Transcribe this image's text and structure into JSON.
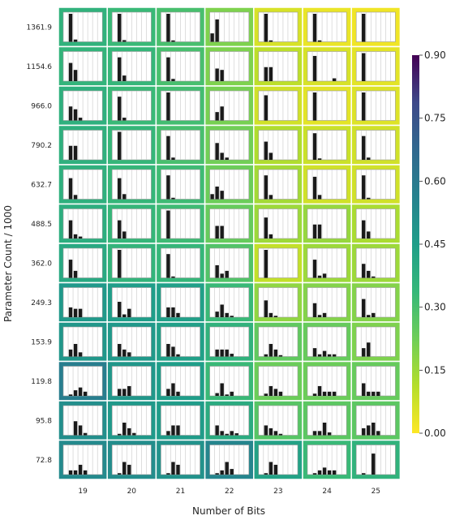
{
  "chart_data": {
    "type": "heatmap",
    "title": "",
    "xlabel": "Number of Bits",
    "ylabel": "Parameter Count / 1000",
    "x_categories": [
      "19",
      "20",
      "21",
      "22",
      "23",
      "24",
      "25"
    ],
    "y_categories": [
      "1361.9",
      "1154.6",
      "966.0",
      "790.2",
      "632.7",
      "488.5",
      "362.0",
      "249.3",
      "153.9",
      "119.8",
      "95.8",
      "72.8"
    ],
    "colorbar": {
      "min": 0.0,
      "max": 0.9,
      "ticks": [
        "0.00",
        "0.15",
        "0.30",
        "0.45",
        "0.60",
        "0.75",
        "0.90"
      ],
      "colormap": "viridis_r"
    },
    "values": [
      [
        0.36,
        0.33,
        0.3,
        0.2,
        0.06,
        0.03,
        0.02
      ],
      [
        0.35,
        0.34,
        0.3,
        0.2,
        0.1,
        0.06,
        0.04
      ],
      [
        0.37,
        0.33,
        0.31,
        0.21,
        0.07,
        0.04,
        0.05
      ],
      [
        0.37,
        0.34,
        0.3,
        0.22,
        0.12,
        0.08,
        0.07
      ],
      [
        0.37,
        0.34,
        0.32,
        0.23,
        0.14,
        0.07,
        0.07
      ],
      [
        0.38,
        0.34,
        0.32,
        0.24,
        0.15,
        0.16,
        0.13
      ],
      [
        0.4,
        0.35,
        0.34,
        0.28,
        0.09,
        0.15,
        0.15
      ],
      [
        0.47,
        0.45,
        0.44,
        0.33,
        0.17,
        0.19,
        0.19
      ],
      [
        0.48,
        0.47,
        0.44,
        0.36,
        0.25,
        0.24,
        0.2
      ],
      [
        0.58,
        0.48,
        0.45,
        0.33,
        0.23,
        0.23,
        0.24
      ],
      [
        0.51,
        0.47,
        0.46,
        0.39,
        0.27,
        0.26,
        0.26
      ],
      [
        0.53,
        0.52,
        0.5,
        0.55,
        0.43,
        0.33,
        0.36
      ]
    ],
    "cell_histograms": [
      [
        [
          0,
          1,
          0.08,
          0,
          0,
          0,
          0,
          0
        ],
        [
          0,
          1,
          0.06,
          0,
          0,
          0,
          0,
          0
        ],
        [
          0,
          1,
          0.05,
          0,
          0,
          0,
          0,
          0
        ],
        [
          0.3,
          0.8,
          0,
          0,
          0,
          0,
          0,
          0
        ],
        [
          0,
          1,
          0.05,
          0,
          0,
          0,
          0,
          0
        ],
        [
          0,
          1,
          0.05,
          0,
          0,
          0,
          0,
          0
        ],
        [
          0,
          1,
          0,
          0,
          0,
          0,
          0,
          0
        ]
      ],
      [
        [
          0,
          0.65,
          0.4,
          0,
          0,
          0,
          0,
          0
        ],
        [
          0,
          0.85,
          0.2,
          0,
          0,
          0,
          0,
          0
        ],
        [
          0,
          0.85,
          0.08,
          0,
          0,
          0,
          0,
          0
        ],
        [
          0,
          0.45,
          0.4,
          0,
          0,
          0,
          0,
          0
        ],
        [
          0,
          0.5,
          0.5,
          0,
          0,
          0,
          0,
          0
        ],
        [
          0,
          0.9,
          0,
          0,
          0,
          0.1,
          0,
          0
        ],
        [
          0,
          1,
          0,
          0,
          0,
          0,
          0,
          0
        ]
      ],
      [
        [
          0,
          0.5,
          0.4,
          0.1,
          0,
          0,
          0,
          0
        ],
        [
          0,
          0.85,
          0.1,
          0,
          0,
          0,
          0,
          0
        ],
        [
          0,
          1,
          0,
          0,
          0,
          0,
          0,
          0
        ],
        [
          0,
          0.3,
          0.5,
          0,
          0,
          0,
          0,
          0
        ],
        [
          0,
          0.9,
          0,
          0,
          0,
          0,
          0,
          0
        ],
        [
          0,
          1,
          0,
          0,
          0,
          0,
          0,
          0
        ],
        [
          0,
          1,
          0,
          0,
          0,
          0,
          0,
          0
        ]
      ],
      [
        [
          0,
          0.5,
          0.5,
          0,
          0,
          0,
          0,
          0
        ],
        [
          0,
          1,
          0,
          0,
          0,
          0,
          0,
          0
        ],
        [
          0,
          0.85,
          0.08,
          0,
          0,
          0,
          0,
          0
        ],
        [
          0,
          0.6,
          0.25,
          0.08,
          0,
          0,
          0,
          0
        ],
        [
          0,
          0.65,
          0.25,
          0,
          0,
          0,
          0,
          0
        ],
        [
          0,
          0.95,
          0.05,
          0,
          0,
          0,
          0,
          0
        ],
        [
          0,
          0.85,
          0.08,
          0,
          0,
          0,
          0,
          0
        ]
      ],
      [
        [
          0,
          0.75,
          0.15,
          0,
          0,
          0,
          0,
          0
        ],
        [
          0,
          0.75,
          0.18,
          0,
          0,
          0,
          0,
          0
        ],
        [
          0,
          0.85,
          0.05,
          0,
          0,
          0,
          0,
          0
        ],
        [
          0.18,
          0.45,
          0.3,
          0,
          0,
          0,
          0,
          0
        ],
        [
          0,
          0.85,
          0.15,
          0,
          0,
          0,
          0,
          0
        ],
        [
          0,
          0.8,
          0.15,
          0,
          0,
          0,
          0,
          0
        ],
        [
          0,
          0.85,
          0.05,
          0,
          0,
          0,
          0,
          0
        ]
      ],
      [
        [
          0,
          0.65,
          0.15,
          0.07,
          0,
          0,
          0,
          0
        ],
        [
          0,
          0.65,
          0.25,
          0,
          0,
          0,
          0,
          0
        ],
        [
          0,
          1,
          0,
          0,
          0,
          0,
          0,
          0
        ],
        [
          0,
          0.45,
          0.45,
          0,
          0,
          0,
          0,
          0
        ],
        [
          0,
          0.75,
          0.15,
          0,
          0,
          0,
          0,
          0
        ],
        [
          0,
          0.5,
          0.5,
          0,
          0,
          0,
          0,
          0
        ],
        [
          0,
          0.65,
          0.25,
          0,
          0,
          0,
          0,
          0
        ]
      ],
      [
        [
          0,
          0.65,
          0.25,
          0,
          0,
          0,
          0,
          0
        ],
        [
          0,
          1,
          0,
          0,
          0,
          0,
          0,
          0
        ],
        [
          0,
          0.85,
          0.05,
          0,
          0,
          0,
          0,
          0
        ],
        [
          0,
          0.45,
          0.15,
          0.25,
          0,
          0,
          0,
          0
        ],
        [
          0,
          1,
          0,
          0,
          0,
          0,
          0,
          0
        ],
        [
          0,
          0.65,
          0.08,
          0.15,
          0,
          0,
          0,
          0
        ],
        [
          0,
          0.5,
          0.25,
          0.05,
          0,
          0,
          0,
          0
        ]
      ],
      [
        [
          0,
          0.35,
          0.3,
          0.3,
          0,
          0,
          0,
          0
        ],
        [
          0,
          0.55,
          0.1,
          0.3,
          0,
          0,
          0,
          0
        ],
        [
          0,
          0.35,
          0.35,
          0.15,
          0,
          0,
          0,
          0
        ],
        [
          0,
          0.2,
          0.45,
          0.15,
          0.05,
          0,
          0,
          0
        ],
        [
          0,
          0.6,
          0.15,
          0.05,
          0,
          0,
          0,
          0
        ],
        [
          0,
          0.5,
          0.08,
          0.15,
          0,
          0,
          0,
          0
        ],
        [
          0,
          0.65,
          0.08,
          0.15,
          0,
          0,
          0,
          0
        ]
      ],
      [
        [
          0,
          0.25,
          0.45,
          0.15,
          0,
          0,
          0,
          0
        ],
        [
          0,
          0.45,
          0.25,
          0.15,
          0,
          0,
          0,
          0
        ],
        [
          0,
          0.45,
          0.35,
          0.08,
          0,
          0,
          0,
          0
        ],
        [
          0,
          0.25,
          0.25,
          0.25,
          0.1,
          0,
          0,
          0
        ],
        [
          0,
          0.08,
          0.45,
          0.25,
          0.05,
          0,
          0,
          0
        ],
        [
          0,
          0.3,
          0.08,
          0.2,
          0.08,
          0.08,
          0,
          0
        ],
        [
          0,
          0.3,
          0.5,
          0,
          0,
          0,
          0,
          0
        ]
      ],
      [
        [
          0,
          0.05,
          0.2,
          0.3,
          0.15,
          0,
          0,
          0
        ],
        [
          0,
          0.25,
          0.25,
          0.35,
          0,
          0,
          0,
          0
        ],
        [
          0,
          0.25,
          0.45,
          0.15,
          0,
          0,
          0,
          0
        ],
        [
          0,
          0.1,
          0.45,
          0.05,
          0.15,
          0,
          0,
          0
        ],
        [
          0,
          0.08,
          0.35,
          0.25,
          0.15,
          0,
          0,
          0
        ],
        [
          0,
          0.08,
          0.35,
          0.15,
          0.15,
          0.15,
          0,
          0
        ],
        [
          0,
          0.45,
          0.15,
          0.15,
          0.15,
          0,
          0,
          0
        ]
      ],
      [
        [
          0,
          0,
          0.5,
          0.35,
          0.08,
          0,
          0,
          0
        ],
        [
          0,
          0.05,
          0.45,
          0.25,
          0.08,
          0,
          0,
          0
        ],
        [
          0,
          0.15,
          0.35,
          0.35,
          0,
          0,
          0,
          0
        ],
        [
          0,
          0.35,
          0.15,
          0.05,
          0.15,
          0.07,
          0,
          0
        ],
        [
          0,
          0.35,
          0.25,
          0.15,
          0.05,
          0,
          0,
          0
        ],
        [
          0,
          0.15,
          0.15,
          0.45,
          0.1,
          0,
          0,
          0
        ],
        [
          0,
          0.25,
          0.35,
          0.45,
          0.15,
          0,
          0,
          0
        ]
      ],
      [
        [
          0,
          0.15,
          0.15,
          0.35,
          0.15,
          0,
          0,
          0
        ],
        [
          0,
          0.05,
          0.45,
          0.35,
          0,
          0,
          0,
          0
        ],
        [
          0,
          0.05,
          0.45,
          0.35,
          0,
          0,
          0,
          0
        ],
        [
          0,
          0.05,
          0.15,
          0.45,
          0.2,
          0,
          0,
          0
        ],
        [
          0,
          0.05,
          0.45,
          0.35,
          0,
          0,
          0,
          0
        ],
        [
          0,
          0.05,
          0.15,
          0.25,
          0.15,
          0.15,
          0,
          0
        ],
        [
          0,
          0.05,
          0,
          0.75,
          0,
          0,
          0,
          0
        ]
      ]
    ]
  }
}
